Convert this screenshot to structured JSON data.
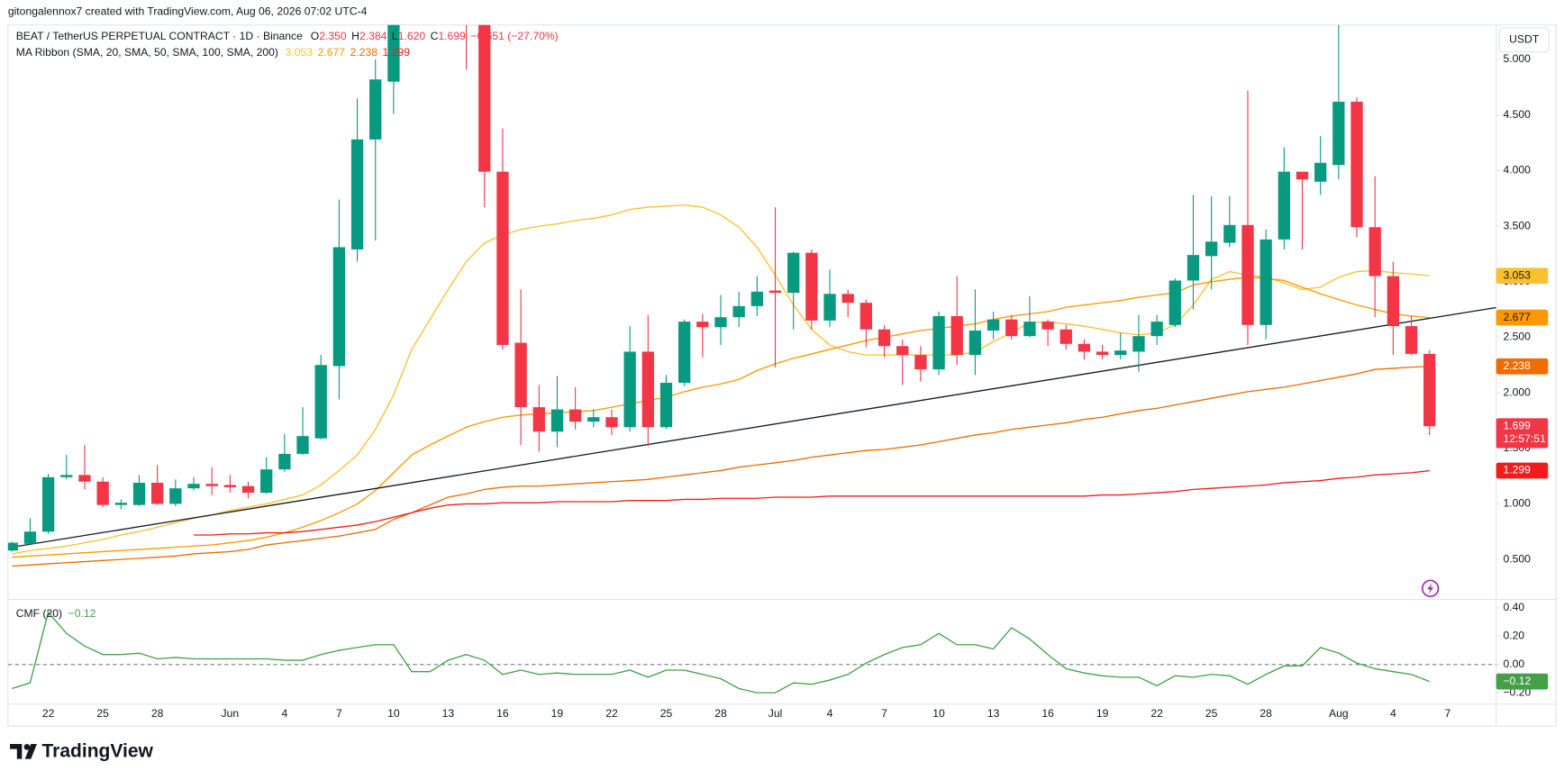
{
  "watermark": "gitongalennox7 created with TradingView.com, Aug 06, 2026 07:02 UTC-4",
  "brand": "TradingView",
  "chart_data": [
    {
      "type": "candlestick",
      "title": "BEAT / TetherUS PERPETUAL CONTRACT · 1D · Binance",
      "ohlc": [
        {
          "key": "O",
          "value": "2.350"
        },
        {
          "key": "H",
          "value": "2.384"
        },
        {
          "key": "L",
          "value": "1.620"
        },
        {
          "key": "C",
          "value": "1.699"
        }
      ],
      "change": "−0.651 (−27.70%)",
      "indicator": "MA Ribbon (SMA, 20, SMA, 50, SMA, 100, SMA, 200)",
      "currency": "USDT",
      "countdown": "12:57:51",
      "up_color": "#089981",
      "down_color": "#f23645",
      "grid": false,
      "categories": [
        null,
        null,
        "22",
        null,
        null,
        "25",
        null,
        null,
        "28",
        null,
        null,
        null,
        "Jun",
        null,
        null,
        "4",
        null,
        null,
        "7",
        null,
        null,
        "10",
        null,
        null,
        "13",
        null,
        null,
        "16",
        null,
        null,
        "19",
        null,
        null,
        "22",
        null,
        null,
        "25",
        null,
        null,
        "28",
        null,
        null,
        "Jul",
        null,
        null,
        "4",
        null,
        null,
        "7",
        null,
        null,
        "10",
        null,
        null,
        "13",
        null,
        null,
        "16",
        null,
        null,
        "19",
        null,
        null,
        "22",
        null,
        null,
        "25",
        null,
        null,
        "28",
        null,
        null,
        null,
        "Aug",
        null,
        null,
        "4",
        null,
        null,
        "7"
      ],
      "open": [
        0.58,
        0.64,
        0.75,
        1.24,
        1.26,
        1.2,
        0.99,
        0.99,
        1.19,
        1.0,
        1.14,
        1.18,
        1.17,
        1.16,
        1.1,
        1.31,
        1.45,
        1.59,
        2.24,
        3.29,
        4.28,
        4.8,
        5.6,
        6.1,
        6.5,
        6.2,
        5.9,
        3.99,
        2.45,
        1.87,
        1.65,
        1.85,
        1.74,
        1.78,
        1.69,
        2.37,
        1.69,
        2.09,
        2.64,
        2.59,
        2.68,
        2.78,
        2.92,
        2.9,
        3.26,
        2.65,
        2.89,
        2.81,
        2.57,
        2.42,
        2.34,
        2.21,
        2.69,
        2.34,
        2.56,
        2.66,
        2.51,
        2.64,
        2.57,
        2.44,
        2.37,
        2.34,
        2.37,
        2.51,
        2.61,
        3.01,
        3.23,
        3.35,
        3.51,
        2.61,
        3.38,
        3.99,
        3.9,
        4.05,
        4.62,
        3.49,
        3.05,
        2.6,
        2.35,
        null
      ],
      "high": [
        0.66,
        0.87,
        1.27,
        1.44,
        1.53,
        1.24,
        1.04,
        1.26,
        1.35,
        1.22,
        1.24,
        1.33,
        1.26,
        1.2,
        1.42,
        1.63,
        1.87,
        2.34,
        3.74,
        4.65,
        5.0,
        6.0,
        6.4,
        6.8,
        7.0,
        6.6,
        6.1,
        4.38,
        2.93,
        2.07,
        2.15,
        2.05,
        1.85,
        1.85,
        2.6,
        2.7,
        2.16,
        2.66,
        2.71,
        2.88,
        2.91,
        3.05,
        3.67,
        3.27,
        3.29,
        3.11,
        2.93,
        2.84,
        2.61,
        2.48,
        2.42,
        2.73,
        3.05,
        2.93,
        2.73,
        2.7,
        2.87,
        2.66,
        2.61,
        2.48,
        2.43,
        2.54,
        2.7,
        2.7,
        3.03,
        3.78,
        3.77,
        3.77,
        4.72,
        3.47,
        4.21,
        3.99,
        4.31,
        5.45,
        4.66,
        3.95,
        3.18,
        2.69,
        2.384,
        null
      ],
      "low": [
        0.57,
        0.63,
        0.73,
        1.22,
        1.13,
        0.97,
        0.95,
        0.98,
        0.99,
        0.98,
        1.12,
        1.08,
        1.1,
        1.05,
        1.09,
        1.29,
        1.44,
        1.58,
        1.94,
        3.18,
        3.37,
        4.51,
        5.4,
        5.8,
        5.9,
        4.91,
        3.67,
        2.39,
        1.53,
        1.47,
        1.51,
        1.67,
        1.69,
        1.62,
        1.65,
        1.52,
        1.67,
        2.06,
        2.32,
        2.43,
        2.59,
        2.69,
        2.23,
        2.57,
        2.57,
        2.59,
        2.68,
        2.41,
        2.32,
        2.07,
        2.1,
        2.16,
        2.25,
        2.16,
        2.48,
        2.48,
        2.5,
        2.42,
        2.39,
        2.3,
        2.3,
        2.3,
        2.19,
        2.43,
        2.59,
        2.75,
        2.93,
        3.31,
        2.43,
        2.48,
        3.29,
        3.29,
        3.78,
        3.92,
        3.4,
        2.68,
        2.34,
        2.34,
        1.62,
        null
      ],
      "close": [
        0.65,
        0.75,
        1.24,
        1.26,
        1.2,
        0.99,
        1.01,
        1.19,
        1.0,
        1.14,
        1.18,
        1.16,
        1.15,
        1.1,
        1.31,
        1.45,
        1.61,
        2.25,
        3.31,
        4.28,
        4.82,
        5.6,
        6.1,
        6.5,
        6.2,
        5.9,
        3.99,
        2.43,
        1.87,
        1.65,
        1.85,
        1.74,
        1.78,
        1.69,
        2.37,
        1.69,
        2.09,
        2.64,
        2.59,
        2.68,
        2.78,
        2.91,
        2.9,
        3.26,
        2.65,
        2.89,
        2.81,
        2.57,
        2.42,
        2.34,
        2.21,
        2.69,
        2.34,
        2.56,
        2.66,
        2.51,
        2.64,
        2.57,
        2.44,
        2.37,
        2.34,
        2.38,
        2.51,
        2.64,
        3.01,
        3.24,
        3.36,
        3.51,
        2.61,
        3.38,
        3.99,
        3.92,
        4.07,
        4.62,
        3.49,
        3.05,
        2.6,
        2.35,
        1.699,
        null
      ],
      "series": [
        {
          "color": "#fbc02d",
          "values": [
            0.55,
            0.58,
            0.6,
            0.62,
            0.65,
            0.68,
            0.72,
            0.75,
            0.79,
            0.83,
            0.87,
            0.9,
            0.94,
            0.97,
            1.0,
            1.04,
            1.08,
            1.17,
            1.3,
            1.44,
            1.67,
            1.98,
            2.39,
            2.66,
            2.93,
            3.18,
            3.35,
            3.42,
            3.47,
            3.5,
            3.52,
            3.55,
            3.57,
            3.6,
            3.65,
            3.67,
            3.68,
            3.69,
            3.67,
            3.6,
            3.49,
            3.31,
            3.06,
            2.79,
            2.57,
            2.43,
            2.37,
            2.34,
            2.34,
            2.34,
            2.34,
            2.34,
            2.34,
            2.37,
            2.46,
            2.54,
            2.63,
            2.64,
            2.62,
            2.6,
            2.57,
            2.54,
            2.52,
            2.54,
            2.61,
            2.79,
            3.02,
            3.09,
            3.06,
            3.04,
            2.99,
            2.93,
            2.95,
            3.04,
            3.09,
            3.1,
            3.08,
            3.07,
            3.053,
            null
          ]
        },
        {
          "color": "#ff9800",
          "values": [
            0.52,
            0.53,
            0.54,
            0.55,
            0.56,
            0.57,
            0.58,
            0.59,
            0.6,
            0.61,
            0.62,
            0.63,
            0.65,
            0.67,
            0.7,
            0.74,
            0.79,
            0.85,
            0.92,
            1.0,
            1.12,
            1.28,
            1.44,
            1.53,
            1.61,
            1.69,
            1.74,
            1.78,
            1.8,
            1.81,
            1.82,
            1.83,
            1.84,
            1.87,
            1.9,
            1.93,
            1.96,
            2.01,
            2.05,
            2.08,
            2.12,
            2.2,
            2.26,
            2.31,
            2.35,
            2.39,
            2.43,
            2.47,
            2.5,
            2.53,
            2.56,
            2.58,
            2.6,
            2.62,
            2.66,
            2.69,
            2.71,
            2.73,
            2.77,
            2.79,
            2.81,
            2.83,
            2.86,
            2.88,
            2.9,
            2.97,
            3.0,
            3.02,
            3.04,
            3.03,
            3.01,
            2.95,
            2.89,
            2.84,
            2.79,
            2.75,
            2.71,
            2.69,
            2.677,
            null
          ]
        },
        {
          "color": "#ef6c00",
          "values": [
            0.44,
            0.45,
            0.46,
            0.47,
            0.48,
            0.49,
            0.5,
            0.51,
            0.52,
            0.53,
            0.55,
            0.56,
            0.57,
            0.59,
            0.63,
            0.65,
            0.67,
            0.69,
            0.71,
            0.74,
            0.77,
            0.86,
            0.92,
            0.99,
            1.06,
            1.09,
            1.13,
            1.15,
            1.16,
            1.16,
            1.17,
            1.18,
            1.19,
            1.2,
            1.21,
            1.22,
            1.24,
            1.26,
            1.28,
            1.3,
            1.33,
            1.35,
            1.37,
            1.39,
            1.42,
            1.44,
            1.46,
            1.48,
            1.49,
            1.51,
            1.53,
            1.56,
            1.59,
            1.62,
            1.64,
            1.67,
            1.69,
            1.71,
            1.73,
            1.76,
            1.78,
            1.81,
            1.84,
            1.86,
            1.89,
            1.92,
            1.95,
            1.98,
            2.01,
            2.03,
            2.05,
            2.08,
            2.11,
            2.14,
            2.17,
            2.21,
            2.22,
            2.23,
            2.238,
            null
          ]
        },
        {
          "color": "#f21c1c",
          "values": [
            null,
            null,
            null,
            null,
            null,
            null,
            null,
            null,
            null,
            null,
            0.72,
            0.72,
            0.73,
            0.73,
            0.74,
            0.74,
            0.75,
            0.77,
            0.79,
            0.81,
            0.84,
            0.88,
            0.92,
            0.96,
            0.99,
            1.0,
            1.0,
            1.01,
            1.01,
            1.01,
            1.02,
            1.02,
            1.02,
            1.02,
            1.03,
            1.03,
            1.03,
            1.04,
            1.04,
            1.05,
            1.05,
            1.05,
            1.06,
            1.06,
            1.06,
            1.07,
            1.07,
            1.07,
            1.07,
            1.07,
            1.07,
            1.07,
            1.07,
            1.07,
            1.07,
            1.07,
            1.07,
            1.07,
            1.07,
            1.07,
            1.08,
            1.08,
            1.09,
            1.1,
            1.11,
            1.13,
            1.14,
            1.15,
            1.16,
            1.17,
            1.19,
            1.2,
            1.21,
            1.23,
            1.24,
            1.26,
            1.27,
            1.28,
            1.299,
            null
          ]
        }
      ],
      "trendline": {
        "color": "#131722",
        "values": [
          0.61,
          2.67
        ]
      },
      "ylim": [
        0.14,
        5.31
      ],
      "yticks": [
        {
          "value": 0.5,
          "label": "0.500"
        },
        {
          "value": 1.0,
          "label": "1.000"
        },
        {
          "value": 1.5,
          "label": "1.500"
        },
        {
          "value": 2.0,
          "label": "2.000"
        },
        {
          "value": 2.5,
          "label": "2.500"
        },
        {
          "value": 3.0,
          "label": "3.000"
        },
        {
          "value": 3.5,
          "label": "3.500"
        },
        {
          "value": 4.0,
          "label": "4.000"
        },
        {
          "value": 4.5,
          "label": "4.500"
        },
        {
          "value": 5.0,
          "label": "5.000"
        }
      ]
    },
    {
      "type": "line",
      "title": "CMF (20)",
      "color": "#43a047",
      "last_value_label": "−0.12",
      "hline": 0,
      "values": [
        -0.17,
        -0.13,
        0.37,
        0.22,
        0.13,
        0.07,
        0.07,
        0.08,
        0.04,
        0.05,
        0.04,
        0.04,
        0.04,
        0.04,
        0.04,
        0.03,
        0.03,
        0.07,
        0.1,
        0.12,
        0.14,
        0.14,
        -0.05,
        -0.05,
        0.03,
        0.07,
        0.03,
        -0.07,
        -0.04,
        -0.07,
        -0.06,
        -0.07,
        -0.07,
        -0.07,
        -0.04,
        -0.09,
        -0.04,
        -0.04,
        -0.07,
        -0.1,
        -0.17,
        -0.2,
        -0.2,
        -0.13,
        -0.14,
        -0.11,
        -0.07,
        0.01,
        0.07,
        0.12,
        0.14,
        0.22,
        0.14,
        0.14,
        0.11,
        0.26,
        0.18,
        0.07,
        -0.03,
        -0.06,
        -0.08,
        -0.09,
        -0.09,
        -0.15,
        -0.08,
        -0.09,
        -0.07,
        -0.08,
        -0.14,
        -0.07,
        -0.01,
        -0.01,
        0.12,
        0.08,
        0.01,
        -0.03,
        -0.05,
        -0.07,
        -0.12,
        null
      ],
      "ylim": [
        -0.28,
        0.46
      ],
      "yticks": [
        {
          "value": 0.4,
          "label": "0.40"
        },
        {
          "value": 0.2,
          "label": "0.20"
        },
        {
          "value": 0,
          "label": "0.00"
        },
        {
          "value": -0.2,
          "label": "−0.20"
        }
      ]
    }
  ]
}
